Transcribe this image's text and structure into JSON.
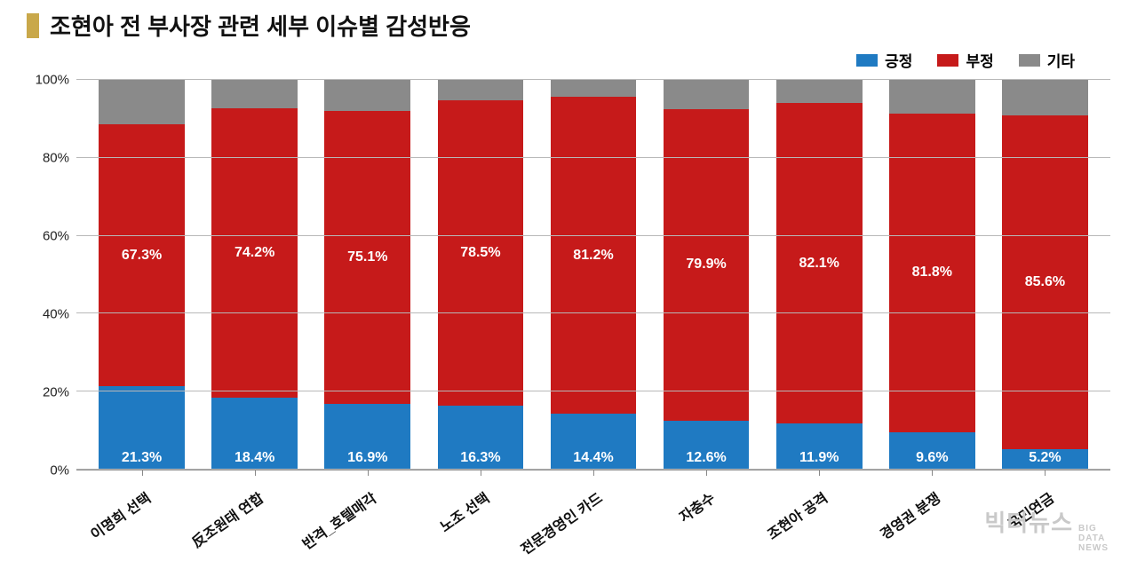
{
  "title": "조현아 전 부사장 관련 세부 이슈별 감성반응",
  "legend": {
    "positive": {
      "label": "긍정",
      "color": "#1f7ac2"
    },
    "negative": {
      "label": "부정",
      "color": "#c61a1a"
    },
    "other": {
      "label": "기타",
      "color": "#8a8a8a"
    }
  },
  "chart": {
    "type": "stacked-bar",
    "ylim": [
      0,
      100
    ],
    "ytick_step": 20,
    "y_suffix": "%",
    "grid_color": "#b8b8b8",
    "background_color": "#ffffff",
    "label_fontsize": 16,
    "value_fontsize": 16,
    "title_fontsize": 26,
    "bar_width_ratio": 0.76,
    "yticks": [
      {
        "value": 0,
        "label": "0%"
      },
      {
        "value": 20,
        "label": "20%"
      },
      {
        "value": 40,
        "label": "40%"
      },
      {
        "value": 60,
        "label": "60%"
      },
      {
        "value": 80,
        "label": "80%"
      },
      {
        "value": 100,
        "label": "100%"
      }
    ],
    "categories": [
      {
        "label": "이명희 선택",
        "positive": 21.3,
        "negative": 67.3,
        "other": 11.4,
        "pos_label": "21.3%",
        "neg_label": "67.3%"
      },
      {
        "label": "反조원태 연합",
        "positive": 18.4,
        "negative": 74.2,
        "other": 7.4,
        "pos_label": "18.4%",
        "neg_label": "74.2%"
      },
      {
        "label": "반격_호텔매각",
        "positive": 16.9,
        "negative": 75.1,
        "other": 8.0,
        "pos_label": "16.9%",
        "neg_label": "75.1%"
      },
      {
        "label": "노조 선택",
        "positive": 16.3,
        "negative": 78.5,
        "other": 5.2,
        "pos_label": "16.3%",
        "neg_label": "78.5%"
      },
      {
        "label": "전문경영인 카드",
        "positive": 14.4,
        "negative": 81.2,
        "other": 4.4,
        "pos_label": "14.4%",
        "neg_label": "81.2%"
      },
      {
        "label": "자충수",
        "positive": 12.6,
        "negative": 79.9,
        "other": 7.5,
        "pos_label": "12.6%",
        "neg_label": "79.9%"
      },
      {
        "label": "조현아 공격",
        "positive": 11.9,
        "negative": 82.1,
        "other": 6.0,
        "pos_label": "11.9%",
        "neg_label": "82.1%"
      },
      {
        "label": "경영권 분쟁",
        "positive": 9.6,
        "negative": 81.8,
        "other": 8.6,
        "pos_label": "9.6%",
        "neg_label": "81.8%"
      },
      {
        "label": "국민연금",
        "positive": 5.2,
        "negative": 85.6,
        "other": 9.2,
        "pos_label": "5.2%",
        "neg_label": "85.6%"
      }
    ]
  },
  "watermark": {
    "main": "빅터뉴스",
    "sub1": "BIG",
    "sub2": "DATA",
    "sub3": "NEWS",
    "color": "#c9c9c9"
  }
}
